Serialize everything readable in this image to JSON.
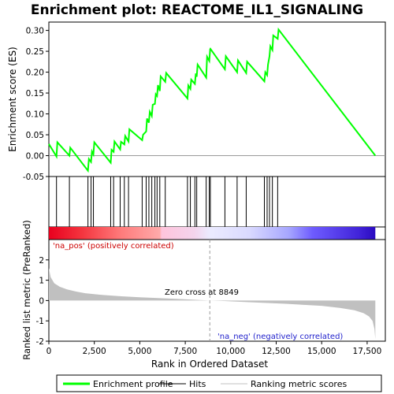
{
  "chart_data": {
    "type": "line",
    "title": "Enrichment plot: REACTOME_IL1_SIGNALING",
    "top_panel": {
      "ylabel": "Enrichment score (ES)",
      "ylim": [
        -0.05,
        0.32
      ],
      "yticks": [
        "-0.05",
        "0.00",
        "0.05",
        "0.10",
        "0.15",
        "0.20",
        "0.25",
        "0.30"
      ],
      "ytick_values": [
        -0.05,
        0.0,
        0.05,
        0.1,
        0.15,
        0.2,
        0.25,
        0.3
      ],
      "series": [
        {
          "name": "Enrichment profile",
          "color": "#00ff00",
          "x": [
            0,
            420,
            470,
            1130,
            1180,
            2150,
            2200,
            2320,
            2370,
            2450,
            2500,
            3400,
            3450,
            3560,
            3610,
            3920,
            3970,
            4150,
            4200,
            4380,
            4430,
            5130,
            5180,
            5350,
            5400,
            5500,
            5550,
            5660,
            5710,
            5830,
            5880,
            5950,
            6000,
            6100,
            6150,
            6400,
            6450,
            7620,
            7670,
            7780,
            7830,
            8030,
            8080,
            8130,
            8180,
            8650,
            8700,
            8820,
            8870,
            8880,
            9680,
            9730,
            10350,
            10400,
            10850,
            10900,
            11850,
            11900,
            12000,
            12050,
            12130,
            12180,
            12290,
            12340,
            12580,
            12630,
            17950
          ],
          "y": [
            0.028,
            -0.002,
            0.032,
            0.0,
            0.019,
            -0.036,
            -0.008,
            -0.015,
            0.01,
            0.003,
            0.032,
            -0.017,
            0.014,
            0.009,
            0.034,
            0.015,
            0.033,
            0.027,
            0.047,
            0.034,
            0.063,
            0.037,
            0.05,
            0.058,
            0.089,
            0.079,
            0.105,
            0.095,
            0.122,
            0.124,
            0.147,
            0.143,
            0.169,
            0.155,
            0.19,
            0.177,
            0.198,
            0.137,
            0.168,
            0.16,
            0.182,
            0.172,
            0.197,
            0.189,
            0.218,
            0.187,
            0.237,
            0.227,
            0.255,
            0.256,
            0.207,
            0.238,
            0.2,
            0.228,
            0.198,
            0.225,
            0.178,
            0.2,
            0.193,
            0.218,
            0.238,
            0.262,
            0.253,
            0.288,
            0.28,
            0.302,
            0.0
          ]
        }
      ]
    },
    "hits": [
      420,
      1130,
      2150,
      2320,
      2450,
      3400,
      3560,
      3920,
      4150,
      4380,
      5130,
      5350,
      5500,
      5660,
      5830,
      5950,
      6100,
      6400,
      7620,
      7780,
      8030,
      8130,
      8650,
      8820,
      8880,
      9680,
      10350,
      10850,
      11850,
      12000,
      12130,
      12290,
      12580
    ],
    "bottom_panel": {
      "ylabel": "Ranked list metric (PreRanked)",
      "xlabel": "Rank in Ordered Dataset",
      "ylim": [
        -2,
        3
      ],
      "yticks": [
        "-2",
        "-1",
        "0",
        "1",
        "2"
      ],
      "ytick_values": [
        -2,
        -1,
        0,
        1,
        2
      ],
      "fill_color": "#c0c0c0",
      "metric_x": [
        0,
        100,
        300,
        600,
        1000,
        1500,
        2000,
        3000,
        4000,
        5000,
        6000,
        7000,
        8000,
        8849,
        9500,
        11000,
        13000,
        15000,
        16000,
        16800,
        17300,
        17600,
        17800,
        17900,
        17950
      ],
      "metric_y": [
        1.6,
        1.15,
        0.85,
        0.68,
        0.55,
        0.44,
        0.36,
        0.27,
        0.21,
        0.16,
        0.12,
        0.08,
        0.04,
        0.0,
        -0.02,
        -0.08,
        -0.16,
        -0.26,
        -0.36,
        -0.48,
        -0.62,
        -0.78,
        -1.0,
        -1.4,
        -1.9
      ],
      "zero_cross_label": "Zero cross at 8849",
      "zero_cross_x": 8849,
      "pos_label": "'na_pos' (positively correlated)",
      "neg_label": "'na_neg' (negatively correlated)"
    },
    "xlim": [
      0,
      18500
    ],
    "xticks": [
      "0",
      "2,500",
      "5,000",
      "7,500",
      "10,000",
      "12,500",
      "15,000",
      "17,500"
    ],
    "xtick_values": [
      0,
      2500,
      5000,
      7500,
      10000,
      12500,
      15000,
      17500
    ],
    "color_bar": {
      "end": 17950,
      "stops": [
        {
          "x": 0,
          "color": "#e8001e"
        },
        {
          "x": 1800,
          "color": "#f4343e"
        },
        {
          "x": 4000,
          "color": "#ff7c7c"
        },
        {
          "x": 6100,
          "color": "#ffaaaa"
        },
        {
          "x": 6200,
          "color": "#ffc4dc"
        },
        {
          "x": 8000,
          "color": "#f4d4ec"
        },
        {
          "x": 8849,
          "color": "#ebebff"
        },
        {
          "x": 11000,
          "color": "#dadaff"
        },
        {
          "x": 13200,
          "color": "#a6a6ff"
        },
        {
          "x": 14500,
          "color": "#6e5cff"
        },
        {
          "x": 17100,
          "color": "#4022d8"
        },
        {
          "x": 17950,
          "color": "#2a0ac0"
        }
      ]
    },
    "legend": {
      "placement": "bottom",
      "items": [
        {
          "label": "Enrichment profile",
          "color": "#00ff00",
          "kind": "thick-line"
        },
        {
          "label": "Hits",
          "color": "#000000",
          "kind": "line"
        },
        {
          "label": "Ranking metric scores",
          "color": "#c0c0c0",
          "kind": "line"
        }
      ]
    }
  }
}
